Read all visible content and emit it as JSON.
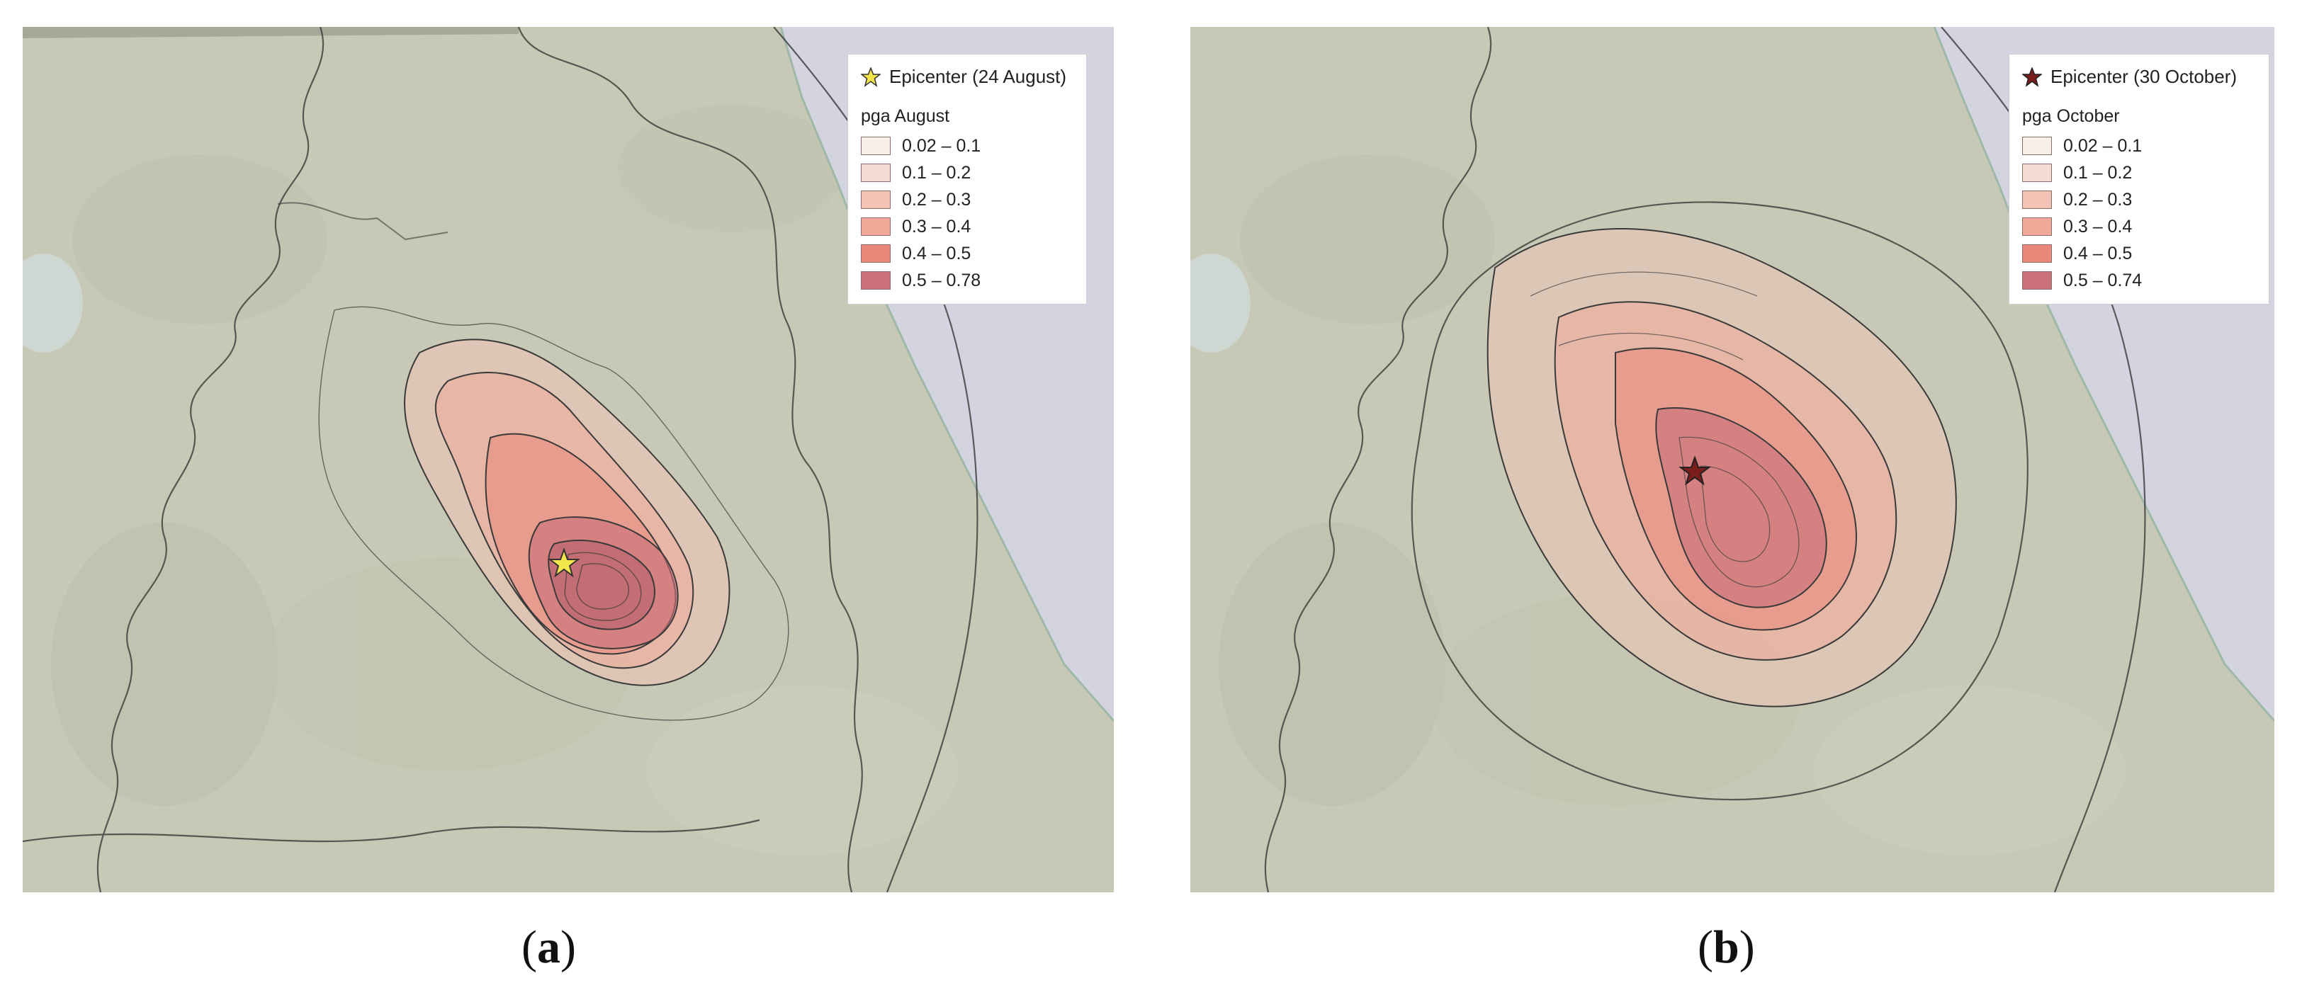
{
  "panels": [
    {
      "caption_open": "(",
      "caption_letter": "a",
      "caption_close": ")",
      "epicenter_label": "Epicenter (24 August)",
      "epicenter_color": "#f3e64a",
      "legend_title": "pga August",
      "classes": [
        {
          "label": "0.02 – 0.1",
          "color": "#f6efea"
        },
        {
          "label": "0.1 – 0.2",
          "color": "#f3dcd2"
        },
        {
          "label": "0.2 – 0.3",
          "color": "#f2c3b4"
        },
        {
          "label": "0.3 – 0.4",
          "color": "#f0a898"
        },
        {
          "label": "0.4 – 0.5",
          "color": "#e8877a"
        },
        {
          "label": "0.5 – 0.78",
          "color": "#c9707a"
        }
      ]
    },
    {
      "caption_open": "(",
      "caption_letter": "b",
      "caption_close": ")",
      "epicenter_label": "Epicenter (30 October)",
      "epicenter_color": "#7a1d1d",
      "legend_title": "pga October",
      "classes": [
        {
          "label": "0.02 – 0.1",
          "color": "#f6efea"
        },
        {
          "label": "0.1 – 0.2",
          "color": "#f3dcd2"
        },
        {
          "label": "0.2 – 0.3",
          "color": "#f2c3b4"
        },
        {
          "label": "0.3 – 0.4",
          "color": "#f0a898"
        },
        {
          "label": "0.4 – 0.5",
          "color": "#e8877a"
        },
        {
          "label": "0.5 – 0.74",
          "color": "#c9707a"
        }
      ]
    }
  ],
  "map_colors": {
    "land": "#c7c8b6",
    "sea": "#d4d4e0",
    "contour_line": "#3a3a3a"
  }
}
